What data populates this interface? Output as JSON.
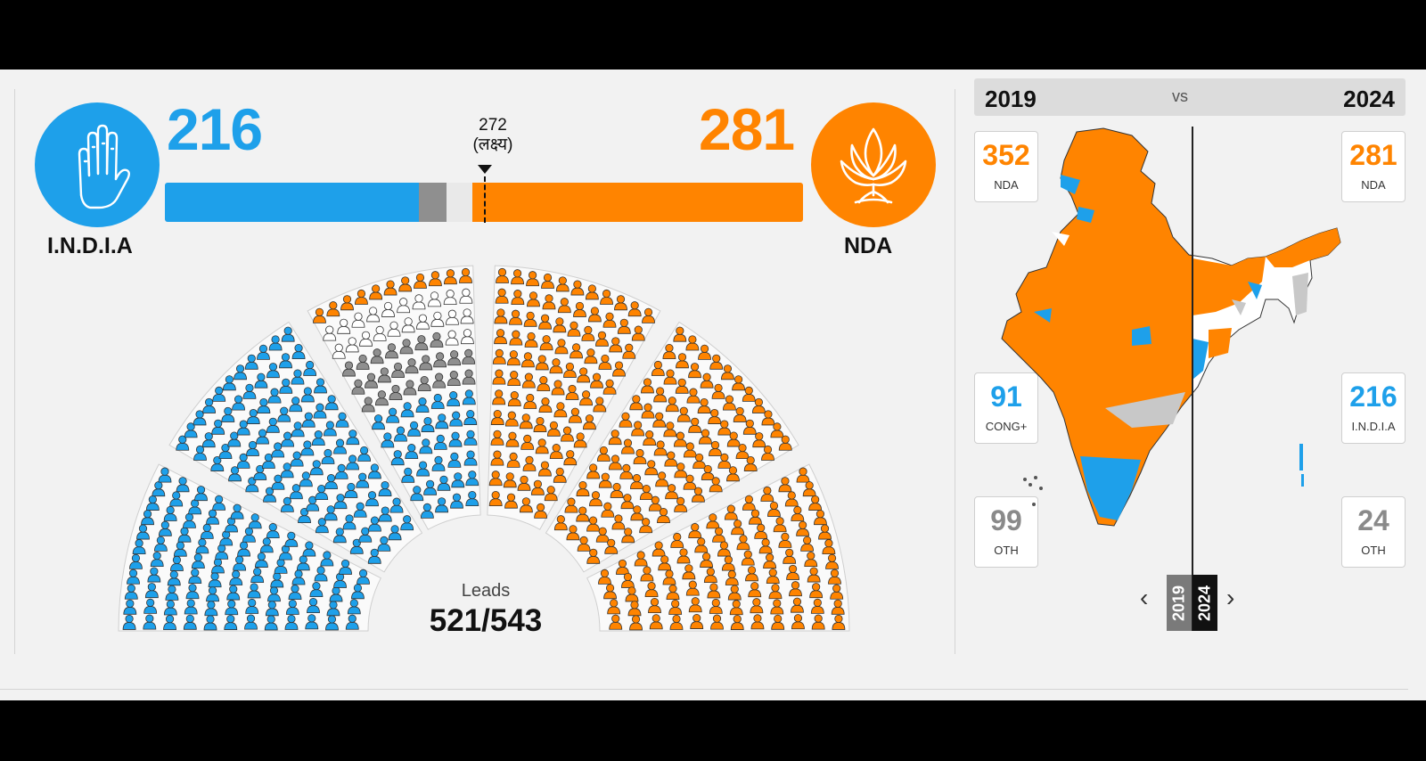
{
  "india": {
    "name": "I.N.D.I.A",
    "seats": "216",
    "color": "#1ea0ea",
    "logo_icon": "hand-icon"
  },
  "nda": {
    "name": "NDA",
    "seats": "281",
    "color": "#ff8400",
    "logo_icon": "lotus-icon"
  },
  "others_color": "#8f8f8f",
  "undecided_color": "#ffffff",
  "seat_bar": {
    "total": 543,
    "india": 216,
    "others": 24,
    "undecided": 22,
    "nda": 281
  },
  "target": {
    "value": "272",
    "label": "(लक्ष्य)"
  },
  "leads": {
    "label": "Leads",
    "value": "521/543"
  },
  "comparison": {
    "year_left": "2019",
    "vs": "vs",
    "year_right": "2024",
    "left_stats": [
      {
        "value": "352",
        "label": "NDA",
        "color": "#ff8400"
      },
      {
        "value": "91",
        "label": "CONG+",
        "color": "#1ea0ea"
      },
      {
        "value": "99",
        "label": "OTH",
        "color": "#8a8a8a"
      }
    ],
    "right_stats": [
      {
        "value": "281",
        "label": "NDA",
        "color": "#ff8400"
      },
      {
        "value": "216",
        "label": "I.N.D.I.A",
        "color": "#1ea0ea"
      },
      {
        "value": "24",
        "label": "OTH",
        "color": "#8a8a8a"
      }
    ]
  },
  "slider": {
    "left_tab": "2019",
    "right_tab": "2024",
    "prev_icon": "chevron-left-icon",
    "next_icon": "chevron-right-icon"
  },
  "map_icon": "india-map"
}
